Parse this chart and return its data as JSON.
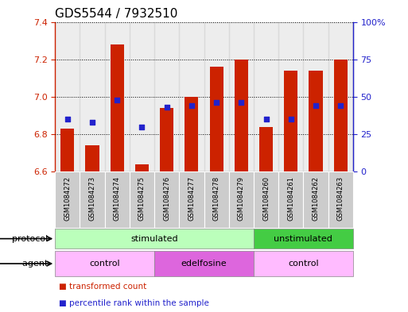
{
  "title": "GDS5544 / 7932510",
  "samples": [
    "GSM1084272",
    "GSM1084273",
    "GSM1084274",
    "GSM1084275",
    "GSM1084276",
    "GSM1084277",
    "GSM1084278",
    "GSM1084279",
    "GSM1084260",
    "GSM1084261",
    "GSM1084262",
    "GSM1084263"
  ],
  "transformed_counts": [
    6.83,
    6.74,
    7.28,
    6.64,
    6.94,
    7.0,
    7.16,
    7.2,
    6.84,
    7.14,
    7.14,
    7.2
  ],
  "percentile_ranks": [
    35,
    33,
    48,
    30,
    43,
    44,
    46,
    46,
    35,
    35,
    44,
    44
  ],
  "ylim_left": [
    6.6,
    7.4
  ],
  "ylim_right": [
    0,
    100
  ],
  "yticks_left": [
    6.6,
    6.8,
    7.0,
    7.2,
    7.4
  ],
  "yticks_right": [
    0,
    25,
    50,
    75,
    100
  ],
  "bar_color": "#cc2200",
  "dot_color": "#2222cc",
  "bar_bottom": 6.6,
  "protocol_groups": [
    {
      "label": "stimulated",
      "start": 0,
      "end": 8,
      "color": "#bbffbb"
    },
    {
      "label": "unstimulated",
      "start": 8,
      "end": 12,
      "color": "#44cc44"
    }
  ],
  "agent_groups": [
    {
      "label": "control",
      "start": 0,
      "end": 4,
      "color": "#ffbbff"
    },
    {
      "label": "edelfosine",
      "start": 4,
      "end": 8,
      "color": "#dd66dd"
    },
    {
      "label": "control",
      "start": 8,
      "end": 12,
      "color": "#ffbbff"
    }
  ],
  "legend_items": [
    {
      "label": "transformed count",
      "color": "#cc2200"
    },
    {
      "label": "percentile rank within the sample",
      "color": "#2222cc"
    }
  ],
  "protocol_label": "protocol",
  "agent_label": "agent",
  "bar_width": 0.55,
  "tick_fontsize": 8,
  "title_fontsize": 11
}
